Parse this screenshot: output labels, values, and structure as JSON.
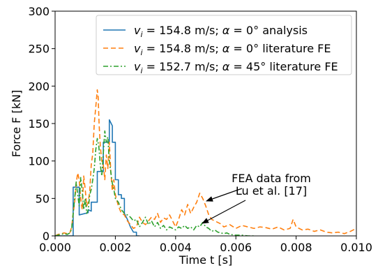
{
  "chart_data": {
    "type": "line",
    "xlabel": "Time t [s]",
    "ylabel": "Force F [kN]",
    "xlim": [
      0.0,
      0.01
    ],
    "ylim": [
      0,
      300
    ],
    "xticks": [
      "0.000",
      "0.002",
      "0.004",
      "0.006",
      "0.008",
      "0.010"
    ],
    "xtick_values": [
      0.0,
      0.002,
      0.004,
      0.006,
      0.008,
      0.01
    ],
    "yticks": [
      "0",
      "50",
      "100",
      "150",
      "200",
      "250",
      "300"
    ],
    "ytick_values": [
      0,
      50,
      100,
      150,
      200,
      250,
      300
    ],
    "grid": false,
    "legend_position": "top-right",
    "annotation": {
      "line1": "FEA data from",
      "line2": "Lu et al. [17]"
    },
    "series": [
      {
        "name": "v_i = 154.8 m/s; α = 0° analysis",
        "legend": {
          "v_sub": "i",
          "eq": " = 154.8 m/s; ",
          "alpha": "α",
          "rest": " = 0° analysis"
        },
        "color": "#1f77b4",
        "style": "solid",
        "x": [
          0.0,
          0.0005,
          0.0006,
          0.0006,
          0.0008,
          0.0008,
          0.0011,
          0.0011,
          0.0012,
          0.0012,
          0.0014,
          0.0014,
          0.0015,
          0.0016,
          0.0016,
          0.0018,
          0.0018,
          0.0019,
          0.0019,
          0.002,
          0.002,
          0.0021,
          0.0021,
          0.0022,
          0.0022,
          0.0023,
          0.0023,
          0.0024,
          0.0025,
          0.0026,
          0.0027,
          0.0027,
          0.0028
        ],
        "y": [
          0,
          0,
          0,
          65,
          65,
          28,
          31,
          35,
          33,
          45,
          45,
          86,
          86,
          86,
          125,
          125,
          155,
          147,
          125,
          125,
          75,
          75,
          55,
          55,
          50,
          50,
          30,
          22,
          12,
          5,
          5,
          0,
          0
        ]
      },
      {
        "name": "v_i = 154.8 m/s; α = 0° literature FE",
        "legend": {
          "v_sub": "i",
          "eq": " = 154.8 m/s; ",
          "alpha": "α",
          "rest": " = 0° literature FE"
        },
        "color": "#ff7f0e",
        "style": "dashed",
        "x": [
          0.0,
          0.0001,
          0.0002,
          0.0003,
          0.0004,
          0.0005,
          0.00055,
          0.0006,
          0.00065,
          0.0007,
          0.00075,
          0.0008,
          0.00085,
          0.0009,
          0.00095,
          0.001,
          0.00105,
          0.0011,
          0.00115,
          0.0012,
          0.00125,
          0.0013,
          0.00135,
          0.0014,
          0.00143,
          0.00146,
          0.0015,
          0.00155,
          0.0016,
          0.00165,
          0.0017,
          0.00175,
          0.0018,
          0.00185,
          0.0019,
          0.00195,
          0.002,
          0.0021,
          0.0022,
          0.0023,
          0.0024,
          0.0025,
          0.0026,
          0.0027,
          0.0028,
          0.0029,
          0.003,
          0.0031,
          0.0032,
          0.0033,
          0.0034,
          0.0035,
          0.0036,
          0.0037,
          0.0038,
          0.0039,
          0.004,
          0.0041,
          0.0042,
          0.0043,
          0.0044,
          0.0045,
          0.0046,
          0.0047,
          0.0048,
          0.0049,
          0.005,
          0.0051,
          0.0052,
          0.0053,
          0.0054,
          0.0055,
          0.0056,
          0.0058,
          0.006,
          0.0062,
          0.0064,
          0.0066,
          0.0068,
          0.007,
          0.0072,
          0.0074,
          0.0076,
          0.0078,
          0.0079,
          0.008,
          0.0082,
          0.0084,
          0.0086,
          0.0088,
          0.009,
          0.0092,
          0.0094,
          0.0096,
          0.0098,
          0.01
        ],
        "y": [
          0,
          2,
          3,
          4,
          3,
          5,
          12,
          30,
          45,
          70,
          84,
          75,
          50,
          35,
          80,
          62,
          40,
          45,
          60,
          95,
          110,
          150,
          172,
          195,
          185,
          150,
          120,
          100,
          95,
          75,
          108,
          90,
          125,
          85,
          60,
          75,
          55,
          40,
          30,
          28,
          20,
          15,
          10,
          12,
          25,
          18,
          15,
          20,
          25,
          22,
          30,
          18,
          24,
          22,
          28,
          20,
          12,
          22,
          35,
          28,
          42,
          30,
          38,
          45,
          57,
          50,
          40,
          28,
          22,
          20,
          18,
          16,
          12,
          15,
          10,
          14,
          12,
          10,
          12,
          11,
          9,
          12,
          8,
          10,
          22,
          12,
          8,
          9,
          6,
          8,
          5,
          4,
          5,
          3,
          6,
          10
        ]
      },
      {
        "name": "v_i = 152.7 m/s; α = 45° literature FE",
        "legend": {
          "v_sub": "i",
          "eq": " = 152.7 m/s; ",
          "alpha": "α",
          "rest": " = 45° literature FE"
        },
        "color": "#2ca02c",
        "style": "dashdot",
        "x": [
          0.0,
          0.0001,
          0.0002,
          0.0003,
          0.0004,
          0.0005,
          0.00055,
          0.0006,
          0.00065,
          0.0007,
          0.00075,
          0.0008,
          0.00085,
          0.0009,
          0.00095,
          0.001,
          0.00105,
          0.0011,
          0.00115,
          0.0012,
          0.00125,
          0.0013,
          0.00135,
          0.0014,
          0.00145,
          0.0015,
          0.00155,
          0.0016,
          0.00165,
          0.0017,
          0.00175,
          0.0018,
          0.00185,
          0.0019,
          0.00195,
          0.002,
          0.0021,
          0.0022,
          0.0023,
          0.0024,
          0.0025,
          0.0026,
          0.0027,
          0.0028,
          0.0029,
          0.003,
          0.0031,
          0.0032,
          0.0033,
          0.0034,
          0.0035,
          0.0036,
          0.0037,
          0.0038,
          0.0039,
          0.004,
          0.0041,
          0.0042,
          0.0043,
          0.0044,
          0.0045,
          0.0046,
          0.0047,
          0.0048,
          0.0049,
          0.005,
          0.0051,
          0.0052,
          0.0053,
          0.0054,
          0.0055,
          0.0056,
          0.0057,
          0.0058,
          0.006,
          0.0062,
          0.0064,
          0.0066
        ],
        "y": [
          0,
          1,
          2,
          3,
          2,
          4,
          10,
          30,
          50,
          72,
          55,
          40,
          78,
          60,
          35,
          50,
          30,
          35,
          55,
          62,
          75,
          90,
          115,
          130,
          120,
          95,
          80,
          110,
          140,
          125,
          132,
          100,
          85,
          70,
          62,
          50,
          45,
          35,
          30,
          28,
          25,
          20,
          22,
          12,
          18,
          25,
          15,
          20,
          12,
          18,
          10,
          14,
          8,
          12,
          10,
          8,
          12,
          10,
          14,
          10,
          12,
          8,
          14,
          12,
          18,
          12,
          10,
          6,
          8,
          5,
          4,
          3,
          4,
          2,
          1,
          1,
          0,
          0
        ]
      }
    ]
  }
}
